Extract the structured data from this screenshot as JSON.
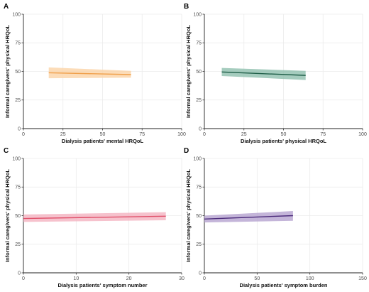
{
  "chart_data": [
    {
      "panel": "A",
      "type": "line",
      "xlabel": "Dialysis patients' mental HRQoL",
      "ylabel": "Informal caregivers' physical HRQoL",
      "xlim": [
        0,
        100
      ],
      "ylim": [
        0,
        100
      ],
      "xticks": [
        0,
        25,
        50,
        75,
        100
      ],
      "yticks": [
        0,
        25,
        50,
        75,
        100
      ],
      "color": "#f0a04b",
      "fill": "#fbd3a6",
      "x": [
        16,
        68
      ],
      "y": [
        48.8,
        47.2
      ],
      "ci_lower": [
        44,
        44.5
      ],
      "ci_upper": [
        53.5,
        50.5
      ]
    },
    {
      "panel": "B",
      "type": "line",
      "xlabel": "Dialysis patients' physical HRQoL",
      "ylabel": "Informal caregivers' physical HRQoL",
      "xlim": [
        0,
        100
      ],
      "ylim": [
        0,
        100
      ],
      "xticks": [
        0,
        25,
        50,
        75,
        100
      ],
      "yticks": [
        0,
        25,
        50,
        75,
        100
      ],
      "color": "#1f5e48",
      "fill": "#8fbfae",
      "x": [
        11,
        64
      ],
      "y": [
        49.5,
        46.5
      ],
      "ci_lower": [
        46,
        42.5
      ],
      "ci_upper": [
        53,
        50.5
      ]
    },
    {
      "panel": "C",
      "type": "line",
      "xlabel": "Dialysis patients' symptom number",
      "ylabel": "Informal caregivers' physical HRQoL",
      "xlim": [
        0,
        30
      ],
      "ylim": [
        0,
        100
      ],
      "xticks": [
        0,
        10,
        20,
        30
      ],
      "yticks": [
        0,
        25,
        50,
        75,
        100
      ],
      "color": "#e0506a",
      "fill": "#f4b3c0",
      "x": [
        0,
        27
      ],
      "y": [
        47.5,
        49.5
      ],
      "ci_lower": [
        44.5,
        46
      ],
      "ci_upper": [
        51,
        53
      ]
    },
    {
      "panel": "D",
      "type": "line",
      "xlabel": "Dialysis patients' symptom burden",
      "ylabel": "Informal caregivers' physical HRQoL",
      "xlim": [
        0,
        150
      ],
      "ylim": [
        0,
        100
      ],
      "xticks": [
        0,
        50,
        100,
        150
      ],
      "yticks": [
        0,
        25,
        50,
        75,
        100
      ],
      "color": "#4b2a7a",
      "fill": "#b5a3cf",
      "x": [
        0,
        84
      ],
      "y": [
        47,
        50
      ],
      "ci_lower": [
        44,
        45.5
      ],
      "ci_upper": [
        50,
        54
      ]
    }
  ]
}
